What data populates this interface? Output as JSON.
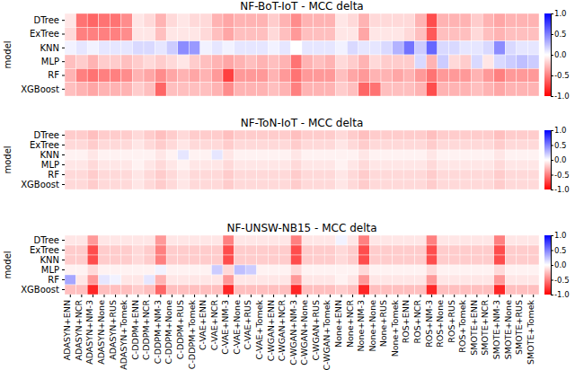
{
  "chart_data": {
    "type": "heatmap",
    "ylabel": "model",
    "x": [
      "ADASYN+ENN",
      "ADASYN+NCR",
      "ADASYN+NM-3",
      "ADASYN+None",
      "ADASYN+RUS",
      "ADASYN+Tomek",
      "C-DDPM+ENN",
      "C-DDPM+NCR",
      "C-DDPM+NM-3",
      "C-DDPM+None",
      "C-DDPM+RUS",
      "C-DDPM+Tomek",
      "C-VAE+ENN",
      "C-VAE+NCR",
      "C-VAE+NM-3",
      "C-VAE+None",
      "C-VAE+RUS",
      "C-VAE+Tomek",
      "C-WGAN+ENN",
      "C-WGAN+NCR",
      "C-WGAN+NM-3",
      "C-WGAN+None",
      "C-WGAN+RUS",
      "C-WGAN+Tomek",
      "None+ENN",
      "None+NCR",
      "None+NM-3",
      "None+None",
      "None+RUS",
      "None+Tomek",
      "ROS+ENN",
      "ROS+NCR",
      "ROS+NM-3",
      "ROS+None",
      "ROS+RUS",
      "ROS+Tomek",
      "SMOTE+ENN",
      "SMOTE+NCR",
      "SMOTE+NM-3",
      "SMOTE+None",
      "SMOTE+RUS",
      "SMOTE+Tomek"
    ],
    "y": [
      "DTree",
      "ExTree",
      "KNN",
      "MLP",
      "RF",
      "XGBoost"
    ],
    "zlim": [
      -1,
      1
    ],
    "zticks": [
      {
        "value": 1,
        "label": "1.0"
      },
      {
        "value": 0.5,
        "label": "0.5"
      },
      {
        "value": 0,
        "label": "0.0"
      },
      {
        "value": -0.5,
        "label": "-0.5"
      },
      {
        "value": -1,
        "label": "-1.0"
      }
    ],
    "panels": [
      {
        "title": "NF-BoT-IoT - MCC delta",
        "values": [
          [
            -0.1,
            -0.55,
            -0.6,
            -0.55,
            -0.55,
            -0.45,
            -0.1,
            -0.15,
            -0.3,
            -0.15,
            -0.1,
            -0.15,
            -0.15,
            -0.3,
            -0.35,
            -0.3,
            -0.3,
            -0.3,
            -0.2,
            -0.3,
            -0.45,
            -0.3,
            -0.3,
            -0.3,
            -0.1,
            -0.15,
            -0.3,
            -0.15,
            -0.15,
            -0.15,
            -0.15,
            -0.3,
            -0.7,
            -0.3,
            -0.3,
            -0.3,
            -0.2,
            -0.3,
            -0.35,
            -0.3,
            -0.3,
            -0.3
          ],
          [
            -0.15,
            -0.5,
            -0.5,
            -0.5,
            -0.5,
            -0.45,
            -0.1,
            -0.1,
            -0.25,
            -0.1,
            -0.1,
            -0.1,
            -0.15,
            -0.25,
            -0.35,
            -0.25,
            -0.25,
            -0.25,
            -0.15,
            -0.25,
            -0.4,
            -0.25,
            -0.25,
            -0.25,
            -0.1,
            -0.1,
            -0.35,
            -0.1,
            -0.1,
            -0.1,
            -0.15,
            -0.25,
            -0.65,
            -0.25,
            -0.25,
            -0.25,
            -0.15,
            -0.25,
            -0.3,
            -0.25,
            -0.25,
            -0.25
          ],
          [
            0.05,
            0.1,
            0.05,
            0.1,
            0.1,
            0.1,
            0.15,
            0.15,
            0.1,
            0.2,
            0.45,
            0.4,
            0.05,
            0.1,
            0.05,
            0.1,
            0.1,
            0.1,
            0.05,
            0.1,
            0.0,
            0.1,
            0.1,
            0.1,
            0.05,
            0.15,
            0.1,
            0.1,
            0.15,
            0.3,
            0.55,
            0.2,
            0.6,
            0.15,
            0.15,
            0.1,
            0.1,
            0.15,
            0.45,
            0.15,
            0.1,
            0.1
          ],
          [
            -0.25,
            -0.2,
            -0.3,
            -0.2,
            -0.2,
            -0.25,
            -0.2,
            -0.15,
            -0.2,
            -0.15,
            -0.1,
            -0.2,
            -0.25,
            -0.3,
            -0.35,
            -0.3,
            -0.25,
            -0.3,
            -0.25,
            -0.3,
            -0.55,
            -0.3,
            -0.25,
            -0.3,
            -0.15,
            -0.2,
            -0.3,
            -0.15,
            -0.2,
            -0.2,
            -0.2,
            0.15,
            -0.3,
            0.2,
            -0.15,
            -0.2,
            0.15,
            -0.1,
            0.15,
            0.2,
            0.25,
            0.2
          ],
          [
            -0.3,
            -0.5,
            -0.55,
            -0.5,
            -0.5,
            -0.45,
            -0.3,
            -0.35,
            -0.45,
            -0.35,
            -0.3,
            -0.35,
            -0.3,
            -0.4,
            -0.75,
            -0.4,
            -0.4,
            -0.4,
            -0.3,
            -0.4,
            -0.55,
            -0.4,
            -0.4,
            -0.4,
            -0.25,
            -0.35,
            -0.4,
            -0.3,
            -0.3,
            -0.35,
            -0.3,
            -0.4,
            -0.55,
            -0.4,
            -0.4,
            -0.4,
            -0.3,
            -0.4,
            -0.5,
            -0.4,
            -0.4,
            -0.4
          ],
          [
            -0.25,
            -0.3,
            -0.35,
            -0.3,
            -0.3,
            -0.3,
            -0.2,
            -0.25,
            -0.6,
            -0.25,
            -0.25,
            -0.25,
            -0.25,
            -0.3,
            -0.45,
            -0.3,
            -0.3,
            -0.3,
            -0.25,
            -0.3,
            -0.5,
            -0.3,
            -0.3,
            -0.3,
            -0.2,
            -0.25,
            -0.6,
            -0.55,
            -0.25,
            -0.25,
            -0.25,
            -0.3,
            -0.7,
            -0.3,
            -0.3,
            -0.3,
            -0.25,
            -0.3,
            -0.35,
            -0.3,
            -0.3,
            -0.3
          ]
        ]
      },
      {
        "title": "NF-ToN-IoT - MCC delta",
        "values": [
          [
            -0.2,
            -0.2,
            -0.25,
            -0.2,
            -0.2,
            -0.2,
            -0.15,
            -0.2,
            -0.25,
            -0.2,
            -0.15,
            -0.2,
            -0.2,
            -0.2,
            -0.25,
            -0.2,
            -0.2,
            -0.2,
            -0.2,
            -0.2,
            -0.25,
            -0.2,
            -0.2,
            -0.2,
            -0.15,
            -0.2,
            -0.25,
            -0.2,
            -0.2,
            -0.2,
            -0.2,
            -0.2,
            -0.25,
            -0.2,
            -0.2,
            -0.2,
            -0.2,
            -0.2,
            -0.25,
            -0.2,
            -0.2,
            -0.2
          ],
          [
            -0.15,
            -0.15,
            -0.2,
            -0.15,
            -0.15,
            -0.15,
            -0.1,
            -0.15,
            -0.2,
            -0.15,
            -0.1,
            -0.15,
            -0.15,
            -0.15,
            -0.2,
            -0.15,
            -0.15,
            -0.15,
            -0.15,
            -0.15,
            -0.2,
            -0.15,
            -0.15,
            -0.15,
            -0.1,
            -0.15,
            -0.2,
            -0.15,
            -0.15,
            -0.15,
            -0.15,
            -0.15,
            -0.2,
            -0.15,
            -0.15,
            -0.15,
            -0.15,
            -0.15,
            -0.2,
            -0.15,
            -0.15,
            -0.15
          ],
          [
            -0.05,
            -0.05,
            -0.1,
            -0.05,
            -0.05,
            -0.05,
            -0.05,
            -0.05,
            -0.1,
            -0.05,
            0.1,
            -0.05,
            -0.05,
            0.1,
            -0.1,
            -0.05,
            -0.05,
            -0.05,
            -0.05,
            -0.05,
            -0.1,
            -0.05,
            -0.05,
            -0.05,
            -0.05,
            -0.05,
            -0.1,
            -0.05,
            -0.05,
            -0.05,
            -0.05,
            -0.05,
            -0.1,
            -0.05,
            -0.05,
            -0.05,
            -0.05,
            -0.05,
            -0.1,
            -0.05,
            -0.05,
            -0.05
          ],
          [
            -0.1,
            -0.1,
            -0.15,
            -0.1,
            -0.1,
            -0.1,
            -0.05,
            -0.1,
            -0.15,
            -0.1,
            -0.05,
            -0.1,
            -0.1,
            -0.1,
            -0.15,
            -0.1,
            -0.1,
            -0.1,
            -0.1,
            -0.1,
            -0.15,
            -0.1,
            -0.1,
            -0.1,
            -0.05,
            -0.1,
            -0.15,
            -0.1,
            -0.1,
            -0.1,
            -0.1,
            -0.1,
            -0.15,
            -0.1,
            -0.1,
            -0.1,
            -0.1,
            -0.1,
            -0.15,
            -0.1,
            -0.1,
            -0.1
          ],
          [
            -0.15,
            -0.15,
            -0.2,
            -0.15,
            -0.15,
            -0.15,
            -0.1,
            -0.15,
            -0.2,
            -0.15,
            -0.1,
            -0.15,
            -0.15,
            -0.15,
            -0.2,
            -0.15,
            -0.15,
            -0.15,
            -0.15,
            -0.15,
            -0.2,
            -0.15,
            -0.15,
            -0.15,
            -0.1,
            -0.15,
            -0.2,
            -0.15,
            -0.15,
            -0.15,
            -0.15,
            -0.15,
            -0.2,
            -0.15,
            -0.15,
            -0.15,
            -0.15,
            -0.15,
            -0.2,
            -0.15,
            -0.15,
            -0.15
          ],
          [
            -0.15,
            -0.15,
            -0.2,
            -0.15,
            -0.15,
            -0.15,
            -0.1,
            -0.15,
            -0.2,
            -0.15,
            -0.1,
            -0.15,
            -0.15,
            -0.15,
            -0.2,
            -0.15,
            -0.15,
            -0.15,
            -0.15,
            -0.15,
            -0.2,
            -0.15,
            -0.15,
            -0.15,
            -0.1,
            -0.15,
            -0.2,
            -0.15,
            -0.15,
            -0.15,
            -0.15,
            -0.15,
            -0.2,
            -0.15,
            -0.15,
            -0.15,
            -0.15,
            -0.15,
            -0.2,
            -0.15,
            -0.15,
            -0.15
          ]
        ]
      },
      {
        "title": "NF-UNSW-NB15 - MCC delta",
        "values": [
          [
            -0.1,
            -0.1,
            -0.4,
            -0.1,
            -0.1,
            -0.1,
            -0.1,
            -0.1,
            -0.4,
            -0.1,
            -0.1,
            -0.1,
            -0.1,
            -0.1,
            -0.5,
            -0.1,
            -0.1,
            -0.1,
            -0.1,
            -0.1,
            -0.5,
            -0.1,
            -0.1,
            -0.1,
            0.05,
            -0.1,
            -0.5,
            -0.1,
            -0.1,
            -0.1,
            -0.1,
            -0.1,
            -0.5,
            -0.1,
            -0.1,
            -0.1,
            -0.1,
            -0.1,
            -0.5,
            -0.1,
            -0.1,
            -0.1
          ],
          [
            -0.2,
            -0.2,
            -0.7,
            -0.2,
            -0.2,
            -0.2,
            -0.15,
            -0.2,
            -0.5,
            -0.2,
            -0.2,
            -0.2,
            -0.2,
            -0.2,
            -0.7,
            -0.2,
            -0.2,
            -0.2,
            -0.2,
            -0.2,
            -0.7,
            -0.2,
            -0.2,
            -0.2,
            -0.15,
            -0.2,
            -0.7,
            -0.2,
            -0.2,
            -0.2,
            -0.2,
            -0.2,
            -0.7,
            -0.2,
            -0.2,
            -0.2,
            -0.2,
            -0.2,
            -0.7,
            -0.2,
            -0.2,
            -0.2
          ],
          [
            -0.2,
            -0.2,
            -0.7,
            -0.2,
            -0.2,
            -0.2,
            -0.15,
            -0.2,
            -0.5,
            -0.2,
            -0.2,
            -0.2,
            -0.2,
            -0.2,
            -0.7,
            -0.2,
            -0.2,
            -0.2,
            -0.2,
            -0.2,
            -0.7,
            -0.2,
            -0.2,
            -0.2,
            -0.15,
            -0.2,
            -0.7,
            -0.2,
            -0.2,
            -0.2,
            -0.2,
            -0.2,
            -0.7,
            -0.2,
            -0.2,
            -0.2,
            -0.2,
            -0.2,
            -0.7,
            -0.2,
            -0.2,
            -0.2
          ],
          [
            -0.05,
            -0.05,
            -0.15,
            -0.05,
            -0.05,
            -0.05,
            -0.05,
            -0.05,
            0.05,
            -0.05,
            -0.05,
            -0.05,
            -0.05,
            0.2,
            -0.15,
            0.25,
            0.2,
            -0.05,
            -0.05,
            -0.05,
            -0.15,
            -0.05,
            -0.05,
            -0.05,
            -0.05,
            -0.05,
            -0.15,
            -0.05,
            -0.05,
            -0.05,
            -0.05,
            -0.05,
            -0.15,
            -0.05,
            -0.05,
            -0.05,
            -0.05,
            -0.05,
            -0.15,
            -0.05,
            -0.05,
            -0.05
          ],
          [
            0.35,
            -0.1,
            -0.4,
            0.1,
            0.05,
            -0.1,
            -0.1,
            0.1,
            -0.3,
            -0.1,
            -0.1,
            -0.1,
            -0.1,
            -0.1,
            -0.4,
            -0.1,
            -0.1,
            -0.1,
            -0.1,
            -0.1,
            -0.4,
            -0.1,
            -0.1,
            -0.1,
            -0.05,
            -0.1,
            -0.4,
            -0.1,
            -0.1,
            -0.1,
            -0.1,
            -0.1,
            -0.4,
            -0.1,
            -0.1,
            -0.1,
            -0.1,
            -0.1,
            -0.4,
            -0.1,
            -0.1,
            -0.1
          ],
          [
            -0.25,
            -0.25,
            -0.85,
            -0.25,
            -0.25,
            -0.25,
            -0.2,
            -0.25,
            -0.6,
            -0.25,
            -0.25,
            -0.25,
            -0.25,
            -0.25,
            -0.85,
            -0.25,
            -0.25,
            -0.25,
            -0.25,
            -0.25,
            -0.85,
            -0.25,
            -0.25,
            -0.25,
            -0.2,
            -0.25,
            -0.85,
            -0.25,
            -0.25,
            -0.25,
            -0.25,
            -0.25,
            -0.85,
            -0.25,
            -0.25,
            -0.25,
            -0.25,
            -0.25,
            -0.85,
            -0.25,
            -0.25,
            -0.25
          ]
        ]
      }
    ]
  }
}
